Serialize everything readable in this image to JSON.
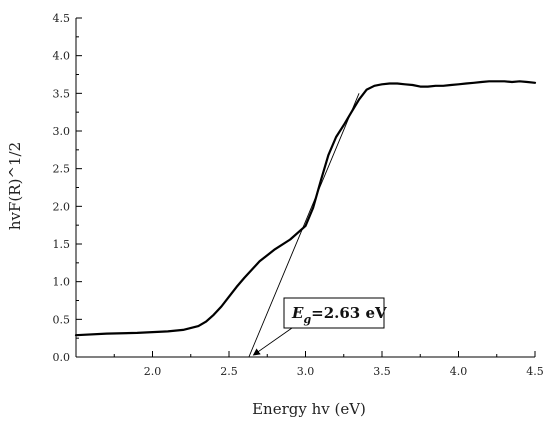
{
  "chart_data": {
    "type": "line",
    "title": "",
    "xlabel": "Energy hv (eV)",
    "ylabel": "hvF(R)^1/2",
    "xlim": [
      1.5,
      4.5
    ],
    "ylim": [
      0.0,
      4.5
    ],
    "grid": false,
    "x_ticks": [
      "2.0",
      "2.5",
      "3.0",
      "3.5",
      "4.0",
      "4.5"
    ],
    "y_ticks": [
      "0.0",
      "0.5",
      "1.0",
      "1.5",
      "2.0",
      "2.5",
      "3.0",
      "3.5",
      "4.0",
      "4.5"
    ],
    "series": [
      {
        "x": [
          1.5,
          1.7,
          1.9,
          2.1,
          2.2,
          2.3,
          2.35,
          2.4,
          2.45,
          2.5,
          2.55,
          2.6,
          2.7,
          2.8,
          2.9,
          3.0,
          3.05,
          3.1,
          3.15,
          3.2,
          3.25,
          3.3,
          3.35,
          3.4,
          3.45,
          3.5,
          3.55,
          3.6,
          3.65,
          3.7,
          3.75,
          3.8,
          3.85,
          3.9,
          3.95,
          4.0,
          4.05,
          4.1,
          4.15,
          4.2,
          4.25,
          4.3,
          4.35,
          4.4,
          4.45,
          4.5
        ],
        "values": [
          0.29,
          0.31,
          0.32,
          0.34,
          0.36,
          0.41,
          0.47,
          0.56,
          0.67,
          0.8,
          0.93,
          1.05,
          1.27,
          1.43,
          1.56,
          1.74,
          1.98,
          2.34,
          2.68,
          2.92,
          3.08,
          3.25,
          3.42,
          3.55,
          3.6,
          3.62,
          3.63,
          3.63,
          3.62,
          3.61,
          3.59,
          3.59,
          3.6,
          3.6,
          3.61,
          3.62,
          3.63,
          3.64,
          3.65,
          3.66,
          3.66,
          3.66,
          3.65,
          3.66,
          3.65,
          3.64
        ],
        "color": "#000000"
      }
    ],
    "tangent_line": {
      "x": [
        2.63,
        3.35
      ],
      "y": [
        0.0,
        3.5
      ],
      "color": "#000000"
    },
    "annotation": {
      "symbol": "E",
      "subscript": "g",
      "text": "=2.63 eV",
      "arrow_target_x": 2.66,
      "arrow_target_y": 0.0
    }
  }
}
